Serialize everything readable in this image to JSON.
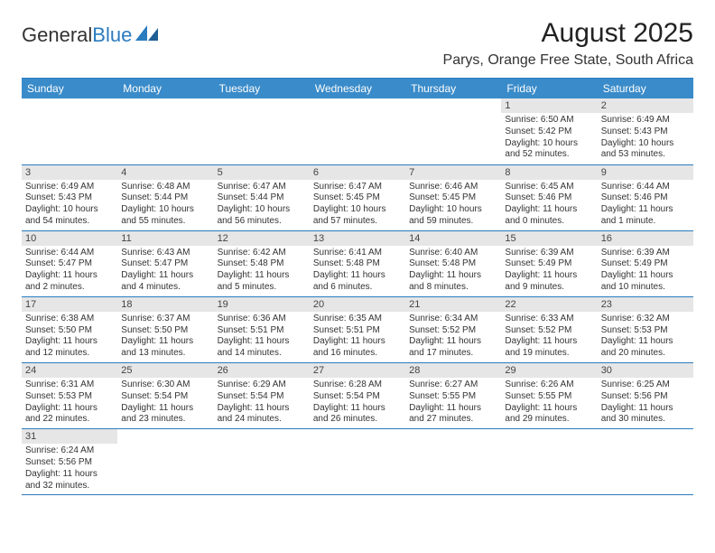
{
  "logo": {
    "general": "General",
    "blue": "Blue"
  },
  "title": "August 2025",
  "location": "Parys, Orange Free State, South Africa",
  "colors": {
    "header_bg": "#3a8bc9",
    "header_text": "#ffffff",
    "border": "#2b7bbf",
    "daynum_bg": "#e6e6e6",
    "text": "#333333",
    "logo_blue": "#2b7bbf"
  },
  "weekdays": [
    "Sunday",
    "Monday",
    "Tuesday",
    "Wednesday",
    "Thursday",
    "Friday",
    "Saturday"
  ],
  "weeks": [
    [
      null,
      null,
      null,
      null,
      null,
      {
        "n": "1",
        "sr": "Sunrise: 6:50 AM",
        "ss": "Sunset: 5:42 PM",
        "d1": "Daylight: 10 hours",
        "d2": "and 52 minutes."
      },
      {
        "n": "2",
        "sr": "Sunrise: 6:49 AM",
        "ss": "Sunset: 5:43 PM",
        "d1": "Daylight: 10 hours",
        "d2": "and 53 minutes."
      }
    ],
    [
      {
        "n": "3",
        "sr": "Sunrise: 6:49 AM",
        "ss": "Sunset: 5:43 PM",
        "d1": "Daylight: 10 hours",
        "d2": "and 54 minutes."
      },
      {
        "n": "4",
        "sr": "Sunrise: 6:48 AM",
        "ss": "Sunset: 5:44 PM",
        "d1": "Daylight: 10 hours",
        "d2": "and 55 minutes."
      },
      {
        "n": "5",
        "sr": "Sunrise: 6:47 AM",
        "ss": "Sunset: 5:44 PM",
        "d1": "Daylight: 10 hours",
        "d2": "and 56 minutes."
      },
      {
        "n": "6",
        "sr": "Sunrise: 6:47 AM",
        "ss": "Sunset: 5:45 PM",
        "d1": "Daylight: 10 hours",
        "d2": "and 57 minutes."
      },
      {
        "n": "7",
        "sr": "Sunrise: 6:46 AM",
        "ss": "Sunset: 5:45 PM",
        "d1": "Daylight: 10 hours",
        "d2": "and 59 minutes."
      },
      {
        "n": "8",
        "sr": "Sunrise: 6:45 AM",
        "ss": "Sunset: 5:46 PM",
        "d1": "Daylight: 11 hours",
        "d2": "and 0 minutes."
      },
      {
        "n": "9",
        "sr": "Sunrise: 6:44 AM",
        "ss": "Sunset: 5:46 PM",
        "d1": "Daylight: 11 hours",
        "d2": "and 1 minute."
      }
    ],
    [
      {
        "n": "10",
        "sr": "Sunrise: 6:44 AM",
        "ss": "Sunset: 5:47 PM",
        "d1": "Daylight: 11 hours",
        "d2": "and 2 minutes."
      },
      {
        "n": "11",
        "sr": "Sunrise: 6:43 AM",
        "ss": "Sunset: 5:47 PM",
        "d1": "Daylight: 11 hours",
        "d2": "and 4 minutes."
      },
      {
        "n": "12",
        "sr": "Sunrise: 6:42 AM",
        "ss": "Sunset: 5:48 PM",
        "d1": "Daylight: 11 hours",
        "d2": "and 5 minutes."
      },
      {
        "n": "13",
        "sr": "Sunrise: 6:41 AM",
        "ss": "Sunset: 5:48 PM",
        "d1": "Daylight: 11 hours",
        "d2": "and 6 minutes."
      },
      {
        "n": "14",
        "sr": "Sunrise: 6:40 AM",
        "ss": "Sunset: 5:48 PM",
        "d1": "Daylight: 11 hours",
        "d2": "and 8 minutes."
      },
      {
        "n": "15",
        "sr": "Sunrise: 6:39 AM",
        "ss": "Sunset: 5:49 PM",
        "d1": "Daylight: 11 hours",
        "d2": "and 9 minutes."
      },
      {
        "n": "16",
        "sr": "Sunrise: 6:39 AM",
        "ss": "Sunset: 5:49 PM",
        "d1": "Daylight: 11 hours",
        "d2": "and 10 minutes."
      }
    ],
    [
      {
        "n": "17",
        "sr": "Sunrise: 6:38 AM",
        "ss": "Sunset: 5:50 PM",
        "d1": "Daylight: 11 hours",
        "d2": "and 12 minutes."
      },
      {
        "n": "18",
        "sr": "Sunrise: 6:37 AM",
        "ss": "Sunset: 5:50 PM",
        "d1": "Daylight: 11 hours",
        "d2": "and 13 minutes."
      },
      {
        "n": "19",
        "sr": "Sunrise: 6:36 AM",
        "ss": "Sunset: 5:51 PM",
        "d1": "Daylight: 11 hours",
        "d2": "and 14 minutes."
      },
      {
        "n": "20",
        "sr": "Sunrise: 6:35 AM",
        "ss": "Sunset: 5:51 PM",
        "d1": "Daylight: 11 hours",
        "d2": "and 16 minutes."
      },
      {
        "n": "21",
        "sr": "Sunrise: 6:34 AM",
        "ss": "Sunset: 5:52 PM",
        "d1": "Daylight: 11 hours",
        "d2": "and 17 minutes."
      },
      {
        "n": "22",
        "sr": "Sunrise: 6:33 AM",
        "ss": "Sunset: 5:52 PM",
        "d1": "Daylight: 11 hours",
        "d2": "and 19 minutes."
      },
      {
        "n": "23",
        "sr": "Sunrise: 6:32 AM",
        "ss": "Sunset: 5:53 PM",
        "d1": "Daylight: 11 hours",
        "d2": "and 20 minutes."
      }
    ],
    [
      {
        "n": "24",
        "sr": "Sunrise: 6:31 AM",
        "ss": "Sunset: 5:53 PM",
        "d1": "Daylight: 11 hours",
        "d2": "and 22 minutes."
      },
      {
        "n": "25",
        "sr": "Sunrise: 6:30 AM",
        "ss": "Sunset: 5:54 PM",
        "d1": "Daylight: 11 hours",
        "d2": "and 23 minutes."
      },
      {
        "n": "26",
        "sr": "Sunrise: 6:29 AM",
        "ss": "Sunset: 5:54 PM",
        "d1": "Daylight: 11 hours",
        "d2": "and 24 minutes."
      },
      {
        "n": "27",
        "sr": "Sunrise: 6:28 AM",
        "ss": "Sunset: 5:54 PM",
        "d1": "Daylight: 11 hours",
        "d2": "and 26 minutes."
      },
      {
        "n": "28",
        "sr": "Sunrise: 6:27 AM",
        "ss": "Sunset: 5:55 PM",
        "d1": "Daylight: 11 hours",
        "d2": "and 27 minutes."
      },
      {
        "n": "29",
        "sr": "Sunrise: 6:26 AM",
        "ss": "Sunset: 5:55 PM",
        "d1": "Daylight: 11 hours",
        "d2": "and 29 minutes."
      },
      {
        "n": "30",
        "sr": "Sunrise: 6:25 AM",
        "ss": "Sunset: 5:56 PM",
        "d1": "Daylight: 11 hours",
        "d2": "and 30 minutes."
      }
    ],
    [
      {
        "n": "31",
        "sr": "Sunrise: 6:24 AM",
        "ss": "Sunset: 5:56 PM",
        "d1": "Daylight: 11 hours",
        "d2": "and 32 minutes."
      },
      null,
      null,
      null,
      null,
      null,
      null
    ]
  ]
}
